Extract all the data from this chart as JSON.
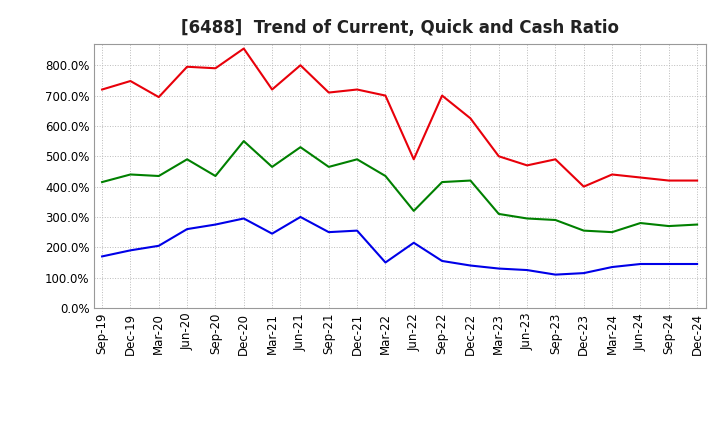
{
  "title": "[6488]  Trend of Current, Quick and Cash Ratio",
  "x_labels": [
    "Sep-19",
    "Dec-19",
    "Mar-20",
    "Jun-20",
    "Sep-20",
    "Dec-20",
    "Mar-21",
    "Jun-21",
    "Sep-21",
    "Dec-21",
    "Mar-22",
    "Jun-22",
    "Sep-22",
    "Dec-22",
    "Mar-23",
    "Jun-23",
    "Sep-23",
    "Dec-23",
    "Mar-24",
    "Jun-24",
    "Sep-24",
    "Dec-24"
  ],
  "current_ratio": [
    720,
    748,
    695,
    795,
    790,
    855,
    720,
    800,
    710,
    720,
    700,
    490,
    700,
    625,
    500,
    470,
    490,
    400,
    440,
    430,
    420,
    420
  ],
  "quick_ratio": [
    415,
    440,
    435,
    490,
    435,
    550,
    465,
    530,
    465,
    490,
    435,
    320,
    415,
    420,
    310,
    295,
    290,
    255,
    250,
    280,
    270,
    275
  ],
  "cash_ratio": [
    170,
    190,
    205,
    260,
    275,
    295,
    245,
    300,
    250,
    255,
    150,
    215,
    155,
    140,
    130,
    125,
    110,
    115,
    135,
    145,
    145,
    145
  ],
  "current_color": "#e8000a",
  "quick_color": "#008000",
  "cash_color": "#0000e8",
  "line_width": 1.5,
  "ylim": [
    0,
    870
  ],
  "yticks": [
    0,
    100,
    200,
    300,
    400,
    500,
    600,
    700,
    800
  ],
  "background_color": "#ffffff",
  "grid_color": "#bbbbbb",
  "title_fontsize": 12,
  "tick_fontsize": 8.5
}
